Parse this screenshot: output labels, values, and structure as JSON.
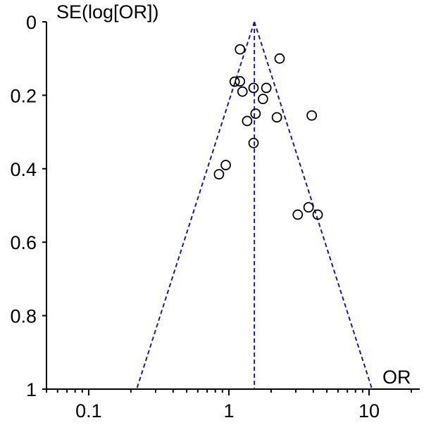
{
  "chart_data": {
    "type": "scatter",
    "title": "",
    "xlabel": "OR",
    "ylabel": "SE(log[OR])",
    "x_scale": "log",
    "xlim": [
      0.05,
      23
    ],
    "ylim": [
      0,
      1
    ],
    "y_reversed": true,
    "x_ticks": [
      0.1,
      1,
      10
    ],
    "x_tick_labels": [
      "0.1",
      "1",
      "10"
    ],
    "y_ticks": [
      0,
      0.2,
      0.4,
      0.6,
      0.8,
      1
    ],
    "y_tick_labels": [
      "0",
      "0.2",
      "0.4",
      "0.6",
      "0.8",
      "1"
    ],
    "grid": false,
    "pooled_or": 1.52,
    "funnel_limits": [
      {
        "se": 0,
        "or": 1.52
      },
      {
        "se": 1,
        "or_lower": 0.22,
        "or_upper": 10.5
      }
    ],
    "points": [
      {
        "or": 1.2,
        "se": 0.075
      },
      {
        "or": 2.3,
        "se": 0.1
      },
      {
        "or": 1.1,
        "se": 0.163
      },
      {
        "or": 1.2,
        "se": 0.162
      },
      {
        "or": 1.25,
        "se": 0.19
      },
      {
        "or": 1.5,
        "se": 0.18
      },
      {
        "or": 1.85,
        "se": 0.18
      },
      {
        "or": 1.75,
        "se": 0.21
      },
      {
        "or": 1.55,
        "se": 0.25
      },
      {
        "or": 1.35,
        "se": 0.27
      },
      {
        "or": 2.2,
        "se": 0.26
      },
      {
        "or": 3.9,
        "se": 0.255
      },
      {
        "or": 1.5,
        "se": 0.33
      },
      {
        "or": 0.95,
        "se": 0.39
      },
      {
        "or": 0.85,
        "se": 0.415
      },
      {
        "or": 3.1,
        "se": 0.525
      },
      {
        "or": 3.7,
        "se": 0.505
      },
      {
        "or": 4.3,
        "se": 0.525
      }
    ],
    "colors": {
      "axis": "#000000",
      "points": "#000000",
      "funnel": "#1a1aa6"
    }
  }
}
